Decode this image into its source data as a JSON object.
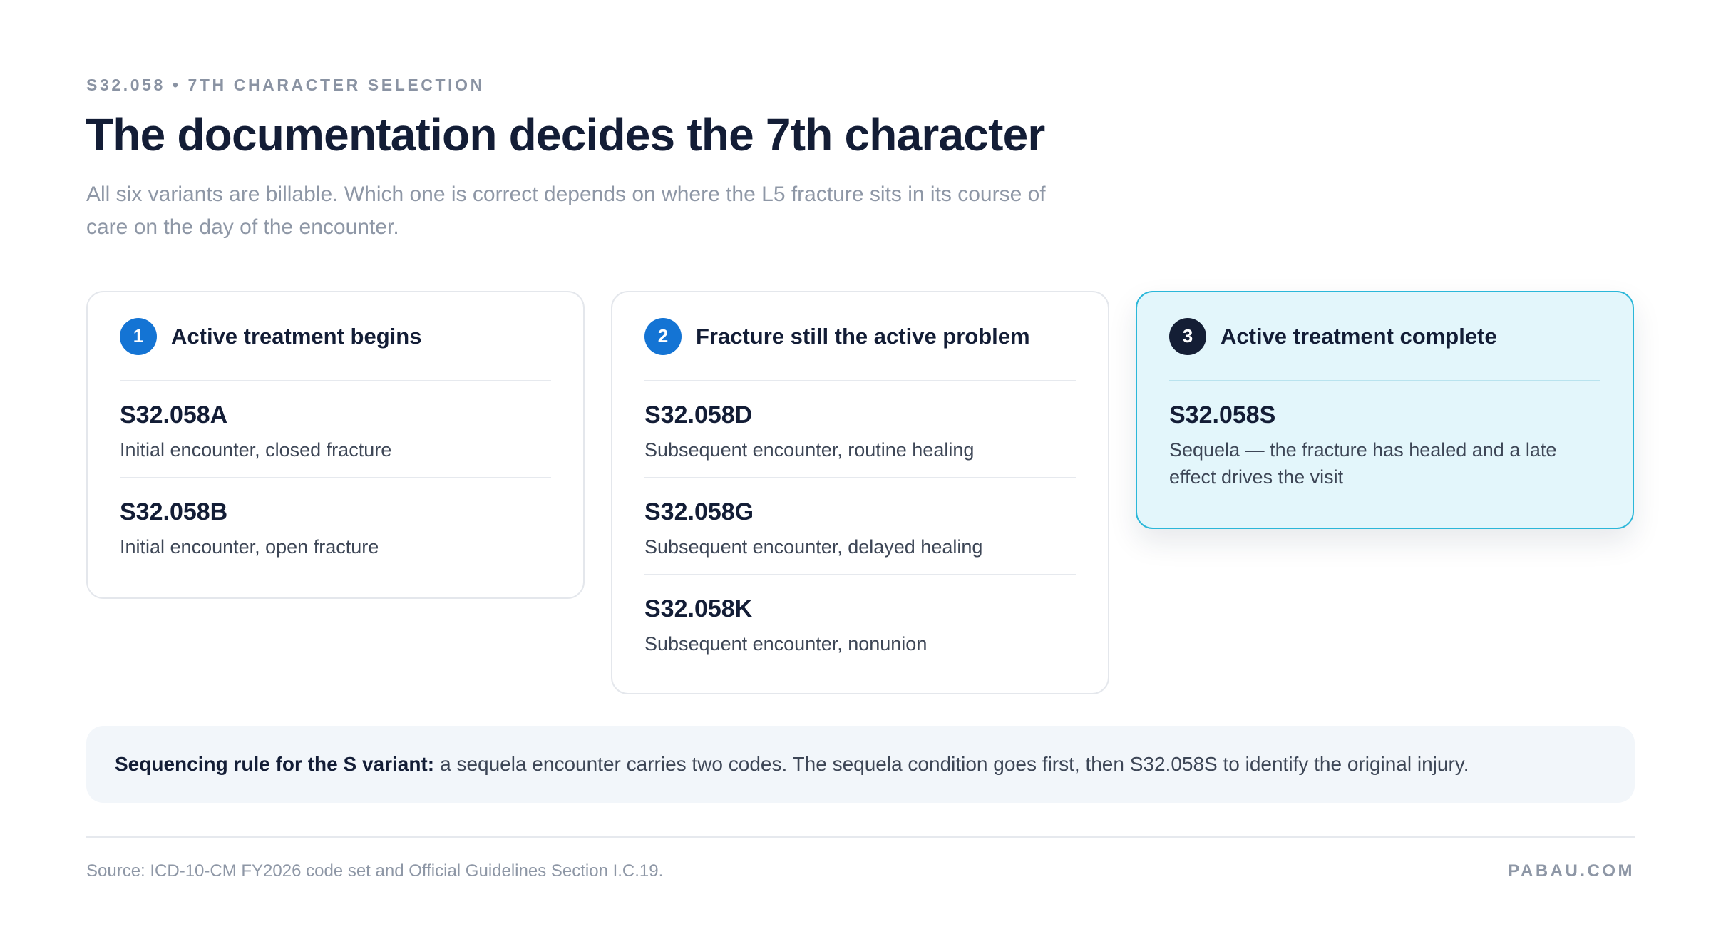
{
  "header": {
    "eyebrow": "S32.058 • 7TH CHARACTER SELECTION",
    "title": "The documentation decides the 7th character",
    "subtitle": "All six variants are billable. Which one is correct depends on where the L5 fracture sits in its course of care on the day of the encounter."
  },
  "cards": [
    {
      "number": "1",
      "title": "Active treatment begins",
      "codes": [
        {
          "code": "S32.058A",
          "description": "Initial encounter, closed fracture"
        },
        {
          "code": "S32.058B",
          "description": "Initial encounter, open fracture"
        }
      ]
    },
    {
      "number": "2",
      "title": "Fracture still the active problem",
      "codes": [
        {
          "code": "S32.058D",
          "description": "Subsequent encounter, routine healing"
        },
        {
          "code": "S32.058G",
          "description": "Subsequent encounter, delayed healing"
        },
        {
          "code": "S32.058K",
          "description": "Subsequent encounter, nonunion"
        }
      ]
    },
    {
      "number": "3",
      "title": "Active treatment complete",
      "highlighted": true,
      "codes": [
        {
          "code": "S32.058S",
          "description": "Sequela — the fracture has healed and a late effect drives the visit"
        }
      ]
    }
  ],
  "rule": {
    "label": "Sequencing rule for the S variant:",
    "text": "a sequela encounter carries two codes. The sequela condition goes first, then S32.058S to identify the original injury."
  },
  "footer": {
    "source": "Source: ICD-10-CM FY2026 code set and Official Guidelines Section I.C.19.",
    "brand": "PABAU.COM"
  },
  "colors": {
    "accent_blue": "#1474d4",
    "dark_badge": "#141e35",
    "highlight_bg": "#e3f6fb",
    "highlight_border": "#2bb7d9"
  }
}
